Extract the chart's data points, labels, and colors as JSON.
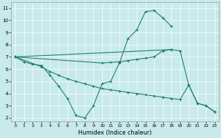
{
  "xlabel": "Humidex (Indice chaleur)",
  "background_color": "#c8eaea",
  "grid_color": "#ffffff",
  "line_color": "#1a7a6e",
  "xlim": [
    -0.5,
    23.5
  ],
  "ylim": [
    1.7,
    11.5
  ],
  "xticks": [
    0,
    1,
    2,
    3,
    4,
    5,
    6,
    7,
    8,
    9,
    10,
    11,
    12,
    13,
    14,
    15,
    16,
    17,
    18,
    19,
    20,
    21,
    22,
    23
  ],
  "yticks": [
    2,
    3,
    4,
    5,
    6,
    7,
    8,
    9,
    10,
    11
  ],
  "line1_x": [
    0,
    1,
    2,
    3,
    4,
    5,
    6,
    7,
    8,
    9,
    10,
    11,
    12,
    13,
    14,
    15,
    16,
    17,
    18
  ],
  "line1_y": [
    7.0,
    6.6,
    6.4,
    6.3,
    5.5,
    4.6,
    3.6,
    2.2,
    2.0,
    3.0,
    4.8,
    5.0,
    6.5,
    8.5,
    9.2,
    10.7,
    10.8,
    10.2,
    9.5
  ],
  "line2_x": [
    0,
    10,
    11,
    12,
    13,
    14,
    15,
    16,
    17,
    18
  ],
  "line2_y": [
    7.0,
    6.5,
    6.55,
    6.6,
    6.7,
    6.8,
    6.9,
    7.0,
    7.5,
    7.6
  ],
  "line3_x": [
    0,
    3,
    4,
    5,
    6,
    7,
    8,
    9,
    10,
    11,
    12,
    13,
    14,
    15,
    16,
    17,
    18,
    19,
    20,
    21,
    22,
    23
  ],
  "line3_y": [
    7.0,
    6.2,
    5.8,
    5.5,
    5.2,
    5.0,
    4.8,
    4.6,
    4.4,
    4.3,
    4.2,
    4.1,
    4.0,
    3.9,
    3.8,
    3.7,
    3.6,
    3.5,
    4.7,
    3.2,
    3.0,
    2.5
  ],
  "line4_x": [
    0,
    18,
    19,
    20,
    21,
    22,
    23
  ],
  "line4_y": [
    7.0,
    7.6,
    7.5,
    4.7,
    3.2,
    3.0,
    2.5
  ]
}
